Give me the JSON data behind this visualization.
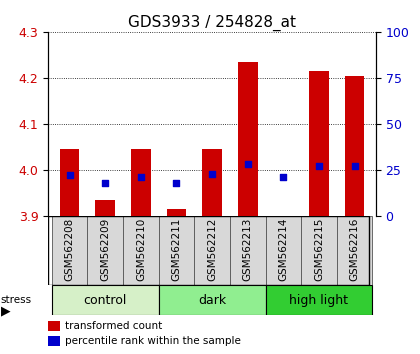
{
  "title": "GDS3933 / 254828_at",
  "samples": [
    "GSM562208",
    "GSM562209",
    "GSM562210",
    "GSM562211",
    "GSM562212",
    "GSM562213",
    "GSM562214",
    "GSM562215",
    "GSM562216"
  ],
  "transformed_count": [
    4.045,
    3.935,
    4.045,
    3.915,
    4.045,
    4.235,
    3.9,
    4.215,
    4.205
  ],
  "percentile_rank": [
    22,
    18,
    21,
    18,
    23,
    28,
    21,
    27,
    27
  ],
  "groups": [
    {
      "label": "control",
      "start": 0,
      "end": 3,
      "color": "#d6f0c8"
    },
    {
      "label": "dark",
      "start": 3,
      "end": 6,
      "color": "#90ee90"
    },
    {
      "label": "high light",
      "start": 6,
      "end": 9,
      "color": "#32cd32"
    }
  ],
  "ylim_left": [
    3.9,
    4.3
  ],
  "ylim_right": [
    0,
    100
  ],
  "yticks_left": [
    3.9,
    4.0,
    4.1,
    4.2,
    4.3
  ],
  "yticks_right": [
    0,
    25,
    50,
    75,
    100
  ],
  "bar_color": "#cc0000",
  "dot_color": "#0000cc",
  "bar_width": 0.55,
  "background_color": "#ffffff",
  "plot_bg_color": "#ffffff",
  "label_color_left": "#cc0000",
  "label_color_right": "#0000cc",
  "group_label_fontsize": 9,
  "tick_label_fontsize": 7.5,
  "title_fontsize": 11
}
